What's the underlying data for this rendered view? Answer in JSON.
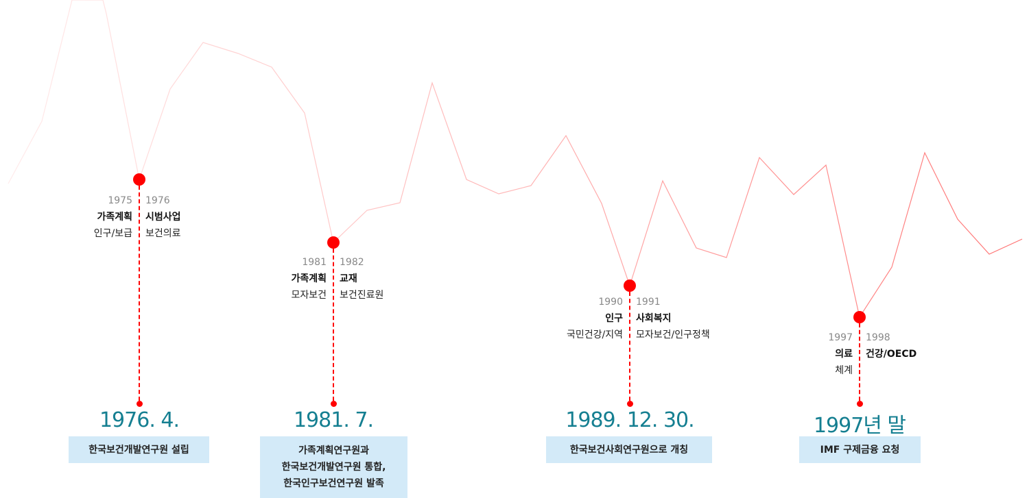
{
  "colors": {
    "accent": "#ff0000",
    "line": "#ff5a5a",
    "date": "#157f91",
    "box": "#d3eaf8"
  },
  "milestones": [
    {
      "left_year": "1975",
      "left_keyword": "가족계획",
      "left_sub": "인구/보급",
      "right_year": "1976",
      "right_keyword": "시범사업",
      "right_sub": "보건의료",
      "date": "1976. 4.",
      "description": "한국보건개발연구원 설립"
    },
    {
      "left_year": "1981",
      "left_keyword": "가족계획",
      "left_sub": "모자보건",
      "right_year": "1982",
      "right_keyword": "교재",
      "right_sub": "보건진료원",
      "date": "1981. 7.",
      "description": "가족계획연구원과\n한국보건개발연구원 통합,\n한국인구보건연구원 발족"
    },
    {
      "left_year": "1990",
      "left_keyword": "인구",
      "left_sub": "국민건강/지역",
      "right_year": "1991",
      "right_keyword": "사회복지",
      "right_sub": "모자보건/인구정책",
      "date": "1989. 12. 30.",
      "description": "한국보건사회연구원으로 개칭"
    },
    {
      "left_year": "1997",
      "left_keyword": "의료",
      "left_sub": "체계",
      "right_year": "1998",
      "right_keyword": "건강/OECD",
      "right_sub": "",
      "date": "1997년 말",
      "description": "IMF 구제금융 요청"
    }
  ]
}
